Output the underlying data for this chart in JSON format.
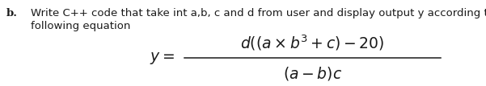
{
  "label": "b.",
  "line1": "Write C⁺⁺ code that take int a,b, c and d from user and display output y according to",
  "line2": "following equation",
  "y_label": "$y =$",
  "numerator": "$d((a \\times b^3 + c) - 20)$",
  "denominator": "$(a - b)c$",
  "bg_color": "#ffffff",
  "text_color": "#1a1a1a",
  "font_size_body": 9.5,
  "font_size_eq": 13.5,
  "fig_width": 6.01,
  "fig_height": 1.07,
  "dpi": 100
}
